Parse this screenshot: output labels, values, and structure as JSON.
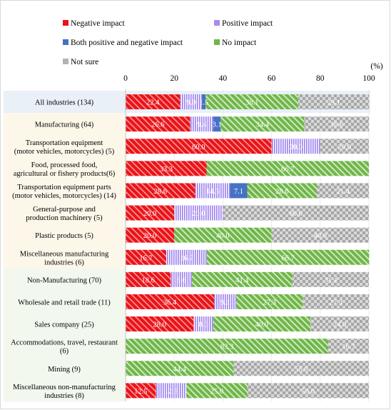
{
  "chart_data": {
    "type": "bar",
    "orientation": "horizontal",
    "stacked": true,
    "unit_label": "(%)",
    "xlim": [
      0,
      100
    ],
    "ticks": [
      0,
      20,
      40,
      60,
      80,
      100
    ],
    "grid": true,
    "legend_position": "top-left",
    "categories": [
      "All industries (134)",
      "Manufacturing (64)",
      "Transportation equipment\n(motor vehicles, motorcycles) (5)",
      "Food, processed food,\nagricultural or fishery products(6)",
      "Transportation equipment parts\n(motor vehicles, motorcycles) (14)",
      "General-purpose and\nproduction machinery (5)",
      "Plastic products (5)",
      "Miscellaneous manufacturing\nindustries (6)",
      "Non-Manufacturing (70)",
      "Wholesale and retail trade (11)",
      "Sales company (25)",
      "Accommodations, travel, restaurant\n(6)",
      "Mining (9)",
      "Miscellaneous non-manufacturing\nindustries (8)"
    ],
    "series": [
      {
        "name": "Negative impact",
        "values": [
          22.4,
          26.6,
          60.0,
          33.3,
          28.6,
          20.0,
          20.0,
          16.7,
          18.6,
          36.4,
          28.0,
          0,
          0,
          12.5
        ]
      },
      {
        "name": "Positive impact",
        "values": [
          9.0,
          9.4,
          20.0,
          0,
          14.3,
          20.0,
          0,
          16.7,
          8.6,
          9.1,
          8.0,
          0,
          0,
          12.5
        ]
      },
      {
        "name": "Both  positive and negative impact",
        "values": [
          1.5,
          3.1,
          0,
          0,
          7.1,
          0,
          0,
          0,
          0,
          0,
          0,
          0,
          0,
          0
        ]
      },
      {
        "name": "No impact",
        "values": [
          38.1,
          34.4,
          0,
          66.7,
          28.6,
          0,
          40.0,
          66.7,
          41.4,
          27.3,
          40.0,
          83.3,
          44.4,
          25.0
        ]
      },
      {
        "name": "Not sure",
        "values": [
          29.1,
          26.6,
          20.0,
          0,
          21.4,
          60.0,
          40.0,
          0,
          31.4,
          27.3,
          24.0,
          16.7,
          55.6,
          50.0
        ]
      }
    ],
    "colors": {
      "negative": "#e8141a",
      "positive": "#a78bf0",
      "both": "#4472c4",
      "no_impact": "#70b64a",
      "not_sure": "#b3b3b3",
      "band_all": "#e9f0f8",
      "band_manufacturing": "#fdf7ea",
      "band_non_manufacturing": "#f2f8ee"
    }
  }
}
